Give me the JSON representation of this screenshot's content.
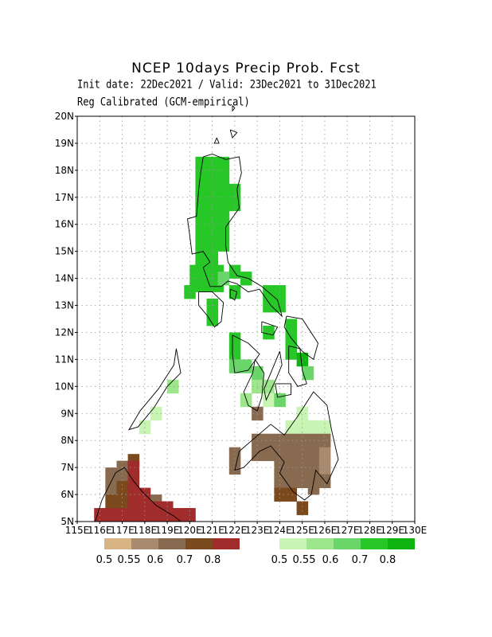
{
  "title": "NCEP 10days Precip Prob. Fcst",
  "subtitle1": "Init date: 22Dec2021 / Valid: 23Dec2021 to 31Dec2021",
  "subtitle2": "Reg Calibrated (GCM-empirical)",
  "lat_labels": [
    "20N",
    "19N",
    "18N",
    "17N",
    "16N",
    "15N",
    "14N",
    "13N",
    "12N",
    "11N",
    "10N",
    "9N",
    "8N",
    "7N",
    "6N",
    "5N"
  ],
  "lon_labels": [
    "115E",
    "116E",
    "117E",
    "118E",
    "119E",
    "120E",
    "121E",
    "122E",
    "123E",
    "124E",
    "125E",
    "126E",
    "127E",
    "128E",
    "129E",
    "130E"
  ],
  "legend": {
    "dry": {
      "labels": [
        "0.5",
        "0.55",
        "0.6",
        "0.7",
        "0.8"
      ],
      "colors": [
        "#d8b383",
        "#a88a6e",
        "#886a50",
        "#7a4a1e",
        "#a12c2c"
      ]
    },
    "wet": {
      "labels": [
        "0.5",
        "0.55",
        "0.6",
        "0.7",
        "0.8"
      ],
      "colors": [
        "#c8f5b4",
        "#9ee68c",
        "#6ad66a",
        "#28c728",
        "#10b410"
      ]
    }
  },
  "map": {
    "lon_range": [
      115,
      130
    ],
    "lat_range": [
      5,
      20
    ],
    "coastline_color": "#000000",
    "grid": true
  }
}
